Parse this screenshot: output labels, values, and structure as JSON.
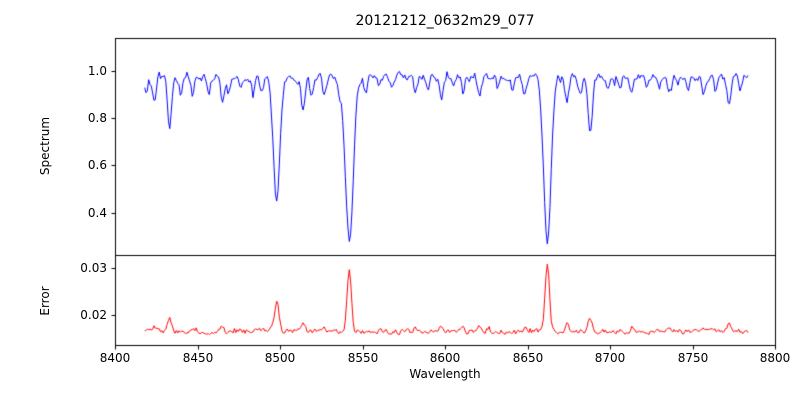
{
  "figure": {
    "background": "#ffffff",
    "axes_color": "#000000"
  },
  "chart_data": [
    {
      "type": "line",
      "title": "20121212_0632m29_077",
      "ylabel": "Spectrum",
      "xlabel": "",
      "legend": "none",
      "grid": false,
      "color": "#0000ff",
      "xlim": [
        8400,
        8800
      ],
      "ylim": [
        0.22,
        1.14
      ],
      "ytick_labels": [
        "0.4",
        "0.6",
        "0.8",
        "1.0"
      ],
      "x_data_range": [
        8418,
        8784
      ],
      "sample_step": 0.8,
      "base_level": 0.975,
      "noise_amplitude": 0.016,
      "noise_seed": 20121212,
      "absorption_lines": [
        {
          "center": 8419,
          "depth": 0.06,
          "sigma": 1.0
        },
        {
          "center": 8424,
          "depth": 0.11,
          "sigma": 1.1
        },
        {
          "center": 8433,
          "depth": 0.23,
          "sigma": 1.2
        },
        {
          "center": 8440,
          "depth": 0.07,
          "sigma": 1.0
        },
        {
          "center": 8447,
          "depth": 0.08,
          "sigma": 1.0
        },
        {
          "center": 8457,
          "depth": 0.05,
          "sigma": 0.9
        },
        {
          "center": 8465,
          "depth": 0.1,
          "sigma": 1.1
        },
        {
          "center": 8469,
          "depth": 0.07,
          "sigma": 0.9
        },
        {
          "center": 8476,
          "depth": 0.06,
          "sigma": 0.9
        },
        {
          "center": 8484,
          "depth": 0.07,
          "sigma": 1.0
        },
        {
          "center": 8489,
          "depth": 0.05,
          "sigma": 0.9
        },
        {
          "center": 8498,
          "depth": 0.54,
          "sigma": 2.0
        },
        {
          "center": 8514,
          "depth": 0.14,
          "sigma": 1.2
        },
        {
          "center": 8519,
          "depth": 0.08,
          "sigma": 1.0
        },
        {
          "center": 8527,
          "depth": 0.09,
          "sigma": 1.1
        },
        {
          "center": 8536,
          "depth": 0.06,
          "sigma": 1.0
        },
        {
          "center": 8542,
          "depth": 0.7,
          "sigma": 2.4
        },
        {
          "center": 8552,
          "depth": 0.07,
          "sigma": 1.0
        },
        {
          "center": 8560,
          "depth": 0.05,
          "sigma": 0.9
        },
        {
          "center": 8568,
          "depth": 0.05,
          "sigma": 0.9
        },
        {
          "center": 8582,
          "depth": 0.06,
          "sigma": 1.0
        },
        {
          "center": 8590,
          "depth": 0.05,
          "sigma": 0.9
        },
        {
          "center": 8598,
          "depth": 0.09,
          "sigma": 1.1
        },
        {
          "center": 8605,
          "depth": 0.05,
          "sigma": 0.9
        },
        {
          "center": 8611,
          "depth": 0.07,
          "sigma": 1.0
        },
        {
          "center": 8621,
          "depth": 0.09,
          "sigma": 1.1
        },
        {
          "center": 8632,
          "depth": 0.05,
          "sigma": 0.9
        },
        {
          "center": 8641,
          "depth": 0.05,
          "sigma": 0.9
        },
        {
          "center": 8648,
          "depth": 0.07,
          "sigma": 1.0
        },
        {
          "center": 8662,
          "depth": 0.69,
          "sigma": 2.2
        },
        {
          "center": 8674,
          "depth": 0.11,
          "sigma": 1.1
        },
        {
          "center": 8682,
          "depth": 0.07,
          "sigma": 1.0
        },
        {
          "center": 8688,
          "depth": 0.24,
          "sigma": 1.3
        },
        {
          "center": 8699,
          "depth": 0.05,
          "sigma": 0.9
        },
        {
          "center": 8706,
          "depth": 0.05,
          "sigma": 0.9
        },
        {
          "center": 8713,
          "depth": 0.08,
          "sigma": 1.0
        },
        {
          "center": 8722,
          "depth": 0.05,
          "sigma": 0.9
        },
        {
          "center": 8730,
          "depth": 0.05,
          "sigma": 0.9
        },
        {
          "center": 8736,
          "depth": 0.07,
          "sigma": 1.0
        },
        {
          "center": 8747,
          "depth": 0.06,
          "sigma": 0.9
        },
        {
          "center": 8757,
          "depth": 0.07,
          "sigma": 1.0
        },
        {
          "center": 8764,
          "depth": 0.06,
          "sigma": 0.9
        },
        {
          "center": 8772,
          "depth": 0.1,
          "sigma": 1.1
        },
        {
          "center": 8779,
          "depth": 0.06,
          "sigma": 0.9
        }
      ]
    },
    {
      "type": "line",
      "title": "",
      "ylabel": "Error",
      "xlabel": "Wavelength",
      "legend": "none",
      "grid": false,
      "color": "#ff0000",
      "xlim": [
        8400,
        8800
      ],
      "ylim": [
        0.0136,
        0.0328
      ],
      "ytick_labels": [
        "0.02",
        "0.03"
      ],
      "xtick_labels": [
        "8400",
        "8450",
        "8500",
        "8550",
        "8600",
        "8650",
        "8700",
        "8750",
        "8800"
      ],
      "x_data_range": [
        8418,
        8784
      ],
      "sample_step": 0.8,
      "base_level": 0.0165,
      "noise_amplitude": 0.0005,
      "noise_seed": 632077,
      "emission_peaks": [
        {
          "center": 8424,
          "depth": 0.0012,
          "sigma": 1.0
        },
        {
          "center": 8433,
          "depth": 0.0028,
          "sigma": 1.1
        },
        {
          "center": 8447,
          "depth": 0.0008,
          "sigma": 0.9
        },
        {
          "center": 8465,
          "depth": 0.001,
          "sigma": 1.0
        },
        {
          "center": 8476,
          "depth": 0.0007,
          "sigma": 0.9
        },
        {
          "center": 8498,
          "depth": 0.0062,
          "sigma": 1.4
        },
        {
          "center": 8514,
          "depth": 0.0014,
          "sigma": 1.0
        },
        {
          "center": 8527,
          "depth": 0.0009,
          "sigma": 1.0
        },
        {
          "center": 8542,
          "depth": 0.0132,
          "sigma": 1.3
        },
        {
          "center": 8582,
          "depth": 0.0006,
          "sigma": 0.9
        },
        {
          "center": 8598,
          "depth": 0.0009,
          "sigma": 1.0
        },
        {
          "center": 8611,
          "depth": 0.001,
          "sigma": 1.0
        },
        {
          "center": 8621,
          "depth": 0.0008,
          "sigma": 1.0
        },
        {
          "center": 8648,
          "depth": 0.0007,
          "sigma": 0.9
        },
        {
          "center": 8662,
          "depth": 0.0143,
          "sigma": 1.3
        },
        {
          "center": 8674,
          "depth": 0.0013,
          "sigma": 1.0
        },
        {
          "center": 8688,
          "depth": 0.003,
          "sigma": 1.1
        },
        {
          "center": 8713,
          "depth": 0.001,
          "sigma": 0.9
        },
        {
          "center": 8736,
          "depth": 0.0008,
          "sigma": 0.9
        },
        {
          "center": 8757,
          "depth": 0.0008,
          "sigma": 0.9
        },
        {
          "center": 8772,
          "depth": 0.0013,
          "sigma": 1.0
        }
      ]
    }
  ]
}
